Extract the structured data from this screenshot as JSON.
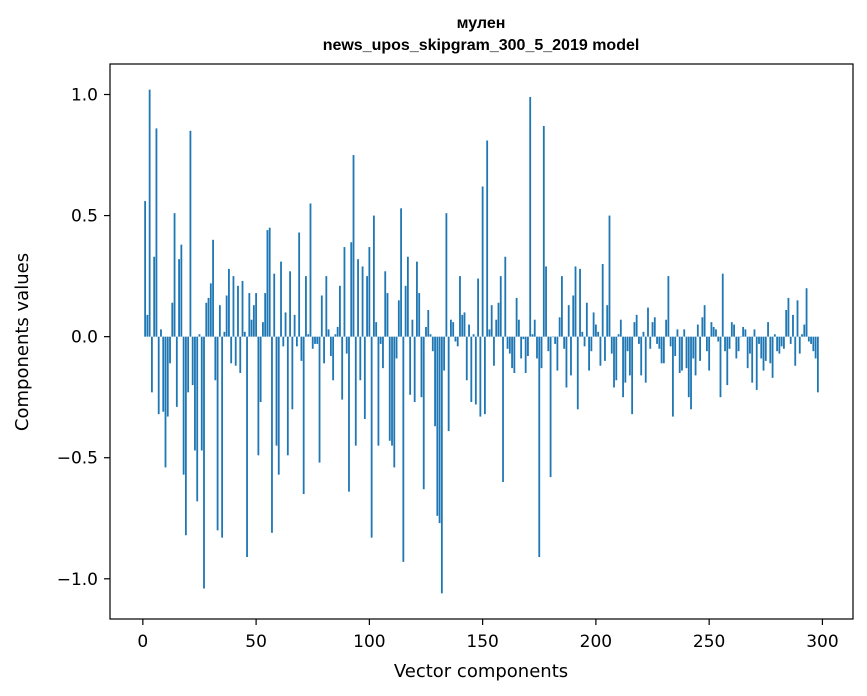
{
  "chart_data": {
    "type": "bar",
    "title": "мулен",
    "subtitle": "news_upos_skipgram_300_5_2019 model",
    "xlabel": "Vector components",
    "ylabel": "Components values",
    "xlim": [
      -14.5,
      313.5
    ],
    "ylim": [
      -1.166,
      1.126
    ],
    "xticks": [
      0,
      50,
      100,
      150,
      200,
      250,
      300
    ],
    "xtick_labels": [
      "0",
      "50",
      "100",
      "150",
      "200",
      "250",
      "300"
    ],
    "yticks": [
      -1.0,
      -0.5,
      0.0,
      0.5,
      1.0
    ],
    "ytick_labels": [
      "−1.0",
      "−0.5",
      "0.0",
      "0.5",
      "1.0"
    ],
    "bar_color": "#1f77b4",
    "series": [
      {
        "name": "мулен",
        "x_start": 1,
        "values": [
          0.56,
          0.09,
          1.02,
          -0.23,
          0.33,
          0.86,
          -0.32,
          0.03,
          -0.31,
          -0.54,
          -0.33,
          -0.11,
          0.14,
          0.51,
          -0.29,
          0.32,
          0.38,
          -0.57,
          -0.82,
          -0.23,
          0.85,
          -0.2,
          -0.47,
          -0.68,
          0.01,
          -0.47,
          -1.04,
          0.14,
          0.16,
          0.22,
          0.4,
          -0.18,
          -0.8,
          0.13,
          -0.83,
          0.02,
          0.17,
          0.28,
          -0.11,
          0.25,
          -0.12,
          0.21,
          -0.15,
          0.23,
          0.02,
          -0.91,
          0.18,
          0.07,
          0.13,
          0.18,
          -0.49,
          -0.27,
          0.06,
          0.18,
          0.44,
          0.45,
          -0.81,
          0.26,
          -0.45,
          -0.57,
          0.31,
          -0.04,
          0.1,
          -0.49,
          0.27,
          -0.3,
          0.09,
          -0.04,
          0.43,
          -0.1,
          -0.65,
          0.25,
          0.01,
          0.55,
          -0.05,
          -0.03,
          -0.03,
          -0.52,
          0.17,
          -0.11,
          0.25,
          0.03,
          -0.08,
          -0.18,
          0.01,
          0.04,
          0.21,
          -0.26,
          0.37,
          -0.07,
          -0.64,
          0.39,
          0.75,
          -0.45,
          0.32,
          -0.18,
          0.29,
          -0.34,
          0.25,
          0.37,
          -0.83,
          0.5,
          0.06,
          -0.45,
          -0.03,
          -0.13,
          0.27,
          0.18,
          -0.43,
          -0.45,
          -0.54,
          -0.09,
          0.15,
          0.53,
          -0.93,
          0.21,
          0.33,
          -0.24,
          0.07,
          -0.27,
          0.31,
          0.18,
          -0.25,
          -0.63,
          0.04,
          0.11,
          0.01,
          -0.06,
          -0.37,
          -0.74,
          -0.77,
          -1.06,
          -0.14,
          0.51,
          -0.39,
          0.07,
          0.06,
          -0.02,
          -0.04,
          0.25,
          0.09,
          0.1,
          -0.18,
          0.05,
          -0.27,
          0.01,
          -0.28,
          0.24,
          -0.33,
          0.62,
          -0.32,
          0.81,
          0.03,
          0.13,
          -0.12,
          0.07,
          0.14,
          0.25,
          -0.6,
          0.33,
          -0.05,
          -0.07,
          -0.13,
          -0.15,
          0.16,
          0.07,
          -0.09,
          -0.01,
          -0.15,
          -0.08,
          0.99,
          0.01,
          0.07,
          -0.09,
          -0.91,
          -0.13,
          0.87,
          0.29,
          -0.06,
          -0.58,
          0.0,
          -0.03,
          -0.14,
          0.08,
          0.25,
          -0.05,
          -0.21,
          0.13,
          -0.16,
          0.17,
          0.29,
          -0.3,
          0.28,
          0.02,
          -0.04,
          0.14,
          -0.14,
          -0.06,
          0.1,
          0.05,
          0.02,
          -0.12,
          0.3,
          -0.1,
          0.13,
          0.5,
          -0.07,
          -0.21,
          -0.18,
          0.01,
          0.07,
          -0.25,
          -0.19,
          -0.06,
          -0.16,
          -0.32,
          0.06,
          0.09,
          -0.03,
          -0.16,
          0.02,
          -0.19,
          0.12,
          -0.05,
          0.06,
          0.08,
          -0.03,
          -0.05,
          -0.11,
          -0.11,
          0.07,
          0.25,
          -0.04,
          -0.33,
          -0.08,
          0.03,
          -0.15,
          -0.14,
          0.03,
          -0.13,
          -0.25,
          -0.3,
          -0.09,
          -0.16,
          0.05,
          -0.1,
          0.08,
          0.13,
          -0.06,
          -0.14,
          0.06,
          0.04,
          0.03,
          -0.02,
          -0.25,
          0.26,
          -0.06,
          -0.2,
          -0.05,
          0.06,
          0.05,
          -0.09,
          -0.06,
          0.0,
          0.04,
          0.03,
          -0.13,
          -0.07,
          -0.19,
          0.03,
          -0.22,
          -0.03,
          -0.09,
          -0.14,
          -0.1,
          0.06,
          -0.11,
          -0.17,
          0.01,
          -0.06,
          -0.07,
          -0.04,
          -0.05,
          0.11,
          0.16,
          -0.03,
          0.09,
          -0.12,
          0.15,
          -0.07,
          0.01,
          0.05,
          0.2,
          -0.02,
          -0.03,
          -0.06,
          -0.09,
          -0.23
        ]
      }
    ]
  }
}
